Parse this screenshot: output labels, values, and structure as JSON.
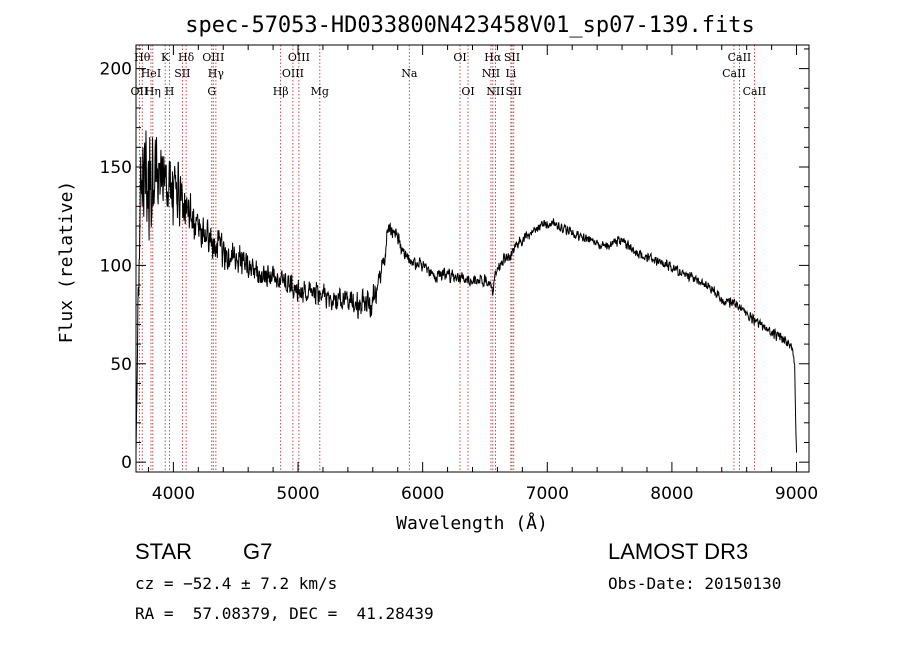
{
  "chart_data": {
    "type": "line",
    "title": "spec-57053-HD033800N423458V01_sp07-139.fits",
    "xlabel": "Wavelength (Å)",
    "ylabel": "Flux (relative)",
    "xlim": [
      3700,
      9100
    ],
    "ylim": [
      -5,
      212
    ],
    "x_ticks": [
      4000,
      5000,
      6000,
      7000,
      8000,
      9000
    ],
    "y_ticks": [
      0,
      50,
      100,
      150,
      200
    ],
    "spectral_lines": [
      {
        "label": "OII",
        "wavelength": 3727,
        "row": 3
      },
      {
        "label": "Hθ",
        "wavelength": 3750,
        "row": 1
      },
      {
        "label": "HeI",
        "wavelength": 3820,
        "row": 2
      },
      {
        "label": "Hη",
        "wavelength": 3835,
        "row": 3
      },
      {
        "label": "K",
        "wavelength": 3934,
        "row": 1
      },
      {
        "label": "H",
        "wavelength": 3969,
        "row": 3
      },
      {
        "label": "SII",
        "wavelength": 4072,
        "row": 2
      },
      {
        "label": "Hδ",
        "wavelength": 4102,
        "row": 1
      },
      {
        "label": "OIII",
        "wavelength": 4320,
        "row": 1
      },
      {
        "label": "Hγ",
        "wavelength": 4341,
        "row": 2
      },
      {
        "label": "G",
        "wavelength": 4308,
        "row": 3
      },
      {
        "label": "Hβ",
        "wavelength": 4861,
        "row": 3
      },
      {
        "label": "OIII",
        "wavelength": 4959,
        "row": 2
      },
      {
        "label": "OIII",
        "wavelength": 5007,
        "row": 1
      },
      {
        "label": "Mg",
        "wavelength": 5175,
        "row": 3
      },
      {
        "label": "Na",
        "wavelength": 5893,
        "row": 2
      },
      {
        "label": "OI",
        "wavelength": 6300,
        "row": 1
      },
      {
        "label": "OI",
        "wavelength": 6364,
        "row": 3
      },
      {
        "label": "NII",
        "wavelength": 6548,
        "row": 2
      },
      {
        "label": "Hα",
        "wavelength": 6563,
        "row": 1
      },
      {
        "label": "NII",
        "wavelength": 6584,
        "row": 3
      },
      {
        "label": "Li",
        "wavelength": 6708,
        "row": 2
      },
      {
        "label": "SII",
        "wavelength": 6717,
        "row": 1
      },
      {
        "label": "SII",
        "wavelength": 6731,
        "row": 3
      },
      {
        "label": "CaII",
        "wavelength": 8498,
        "row": 2
      },
      {
        "label": "CaII",
        "wavelength": 8542,
        "row": 1
      },
      {
        "label": "CaII",
        "wavelength": 8662,
        "row": 3
      }
    ],
    "spectrum_anchors": {
      "wavelength": [
        3700,
        3720,
        3740,
        3760,
        3800,
        3850,
        3900,
        3950,
        4000,
        4050,
        4100,
        4150,
        4200,
        4300,
        4400,
        4500,
        4600,
        4700,
        4800,
        4900,
        5000,
        5100,
        5200,
        5300,
        5400,
        5500,
        5600,
        5650,
        5700,
        5720,
        5750,
        5800,
        5850,
        5900,
        6000,
        6100,
        6200,
        6300,
        6400,
        6500,
        6550,
        6563,
        6580,
        6600,
        6650,
        6700,
        6750,
        6800,
        6900,
        7000,
        7050,
        7100,
        7200,
        7300,
        7400,
        7500,
        7600,
        7700,
        7800,
        7900,
        8000,
        8100,
        8200,
        8300,
        8400,
        8500,
        8600,
        8700,
        8800,
        8900,
        8960,
        8985,
        8995,
        9000
      ],
      "flux": [
        5,
        100,
        135,
        150,
        140,
        148,
        145,
        138,
        138,
        135,
        128,
        122,
        118,
        113,
        107,
        105,
        100,
        95,
        94,
        91,
        87,
        87,
        85,
        82,
        82,
        80,
        82,
        90,
        105,
        118,
        118,
        114,
        106,
        102,
        100,
        95,
        95,
        95,
        92,
        92,
        90,
        85,
        95,
        98,
        103,
        105,
        110,
        113,
        118,
        121,
        122,
        120,
        116,
        114,
        111,
        110,
        113,
        107,
        104,
        102,
        99,
        96,
        92,
        89,
        83,
        80,
        75,
        70,
        66,
        62,
        59,
        50,
        15,
        5
      ],
      "noise_amplitude": [
        0,
        30,
        34,
        34,
        30,
        26,
        24,
        22,
        20,
        18,
        16,
        14,
        12,
        11,
        10,
        9,
        8,
        7,
        7,
        7,
        7,
        7,
        7,
        7,
        7,
        8,
        9,
        8,
        6,
        4,
        4,
        4,
        4,
        4,
        4,
        4,
        4,
        4,
        4,
        4,
        3,
        3,
        3,
        3,
        3,
        3,
        3,
        3,
        3,
        3,
        3,
        3,
        3,
        3,
        3,
        3,
        3,
        3,
        3,
        3,
        3,
        3,
        3,
        3,
        3,
        3,
        3,
        3,
        3,
        3,
        3,
        3,
        1,
        0
      ]
    }
  },
  "info": {
    "object_class": "STAR",
    "subclass": "G7",
    "survey": "LAMOST DR3",
    "cz": "cz = −52.4 ± 7.2 km/s",
    "obs_date": "Obs-Date: 20150130",
    "coords": "RA =  57.08379, DEC =  41.28439"
  },
  "colors": {
    "line_marker": "#b22222",
    "spectrum": "#000000",
    "axes": "#000000"
  }
}
